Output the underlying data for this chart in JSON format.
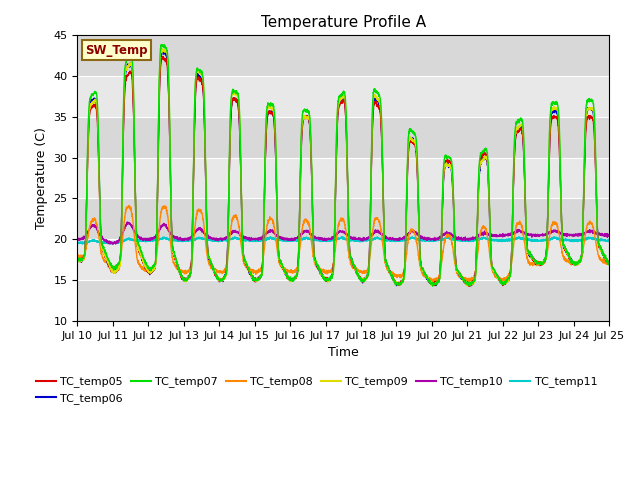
{
  "title": "Temperature Profile A",
  "xlabel": "Time",
  "ylabel": "Temperature (C)",
  "ylim": [
    10,
    45
  ],
  "background_color": "#e8e8e8",
  "sw_temp_label": "SW_Temp",
  "series": {
    "TC_temp05": {
      "color": "#dd0000",
      "lw": 1.0
    },
    "TC_temp06": {
      "color": "#0000cc",
      "lw": 1.0
    },
    "TC_temp07": {
      "color": "#00dd00",
      "lw": 1.0
    },
    "TC_temp08": {
      "color": "#ff8800",
      "lw": 1.0
    },
    "TC_temp09": {
      "color": "#dddd00",
      "lw": 1.0
    },
    "TC_temp10": {
      "color": "#aa00aa",
      "lw": 1.0
    },
    "TC_temp11": {
      "color": "#00cccc",
      "lw": 1.2
    }
  },
  "x_tick_labels": [
    "Jul 10",
    "Jul 11",
    "Jul 12",
    "Jul 13",
    "Jul 14",
    "Jul 15",
    "Jul 16",
    "Jul 17",
    "Jul 18",
    "Jul 19",
    "Jul 20",
    "Jul 21",
    "Jul 22",
    "Jul 23",
    "Jul 24",
    "Jul 25"
  ],
  "yticks": [
    10,
    15,
    20,
    25,
    30,
    35,
    40,
    45
  ],
  "peaks_07": [
    36,
    40,
    45,
    42,
    39,
    37,
    36,
    35.5,
    40.5,
    35,
    31,
    29,
    33,
    36.5,
    37
  ],
  "peaks_09": [
    35,
    39,
    44,
    42,
    38.5,
    37,
    35,
    35,
    40,
    34,
    30,
    28,
    32,
    36,
    36
  ],
  "peaks_05": [
    35,
    38,
    43,
    41,
    38,
    36,
    35,
    35,
    39,
    33.5,
    30,
    29,
    32,
    35,
    35
  ],
  "peaks_06": [
    35.5,
    39,
    44,
    41.5,
    38,
    36,
    35,
    35,
    39.5,
    34,
    30,
    28,
    32,
    35.5,
    36
  ],
  "peaks_08": [
    21,
    24,
    24,
    24,
    23,
    22.5,
    22.5,
    22,
    23,
    22,
    20,
    21,
    22,
    22,
    22
  ],
  "peaks_10": [
    21.5,
    22,
    22,
    21.5,
    21,
    21,
    21,
    21,
    21,
    21,
    21,
    20.5,
    21,
    21,
    21
  ],
  "peaks_11": [
    19.8,
    20,
    20.2,
    20.2,
    20.2,
    20.2,
    20.2,
    20.2,
    20.2,
    20.2,
    20.2,
    20.2,
    20.2,
    20.2,
    20.2
  ],
  "troughs_07": [
    17.5,
    16.5,
    16.5,
    15,
    15,
    15,
    15,
    15,
    15,
    14.5,
    14.5,
    14.5,
    14.5,
    17,
    17
  ],
  "troughs_05": [
    17.5,
    16,
    16,
    15,
    15,
    15,
    15,
    15,
    15,
    14.5,
    14.5,
    14.5,
    14.5,
    17,
    17
  ],
  "troughs_06": [
    17.5,
    16,
    16,
    15,
    15,
    15,
    15,
    15,
    15,
    14.5,
    14.5,
    14.5,
    14.5,
    17,
    17
  ],
  "troughs_09": [
    17.5,
    16,
    16,
    15,
    15,
    15,
    15,
    15,
    15,
    14.5,
    14.5,
    14.5,
    14.5,
    17,
    17
  ],
  "troughs_08": [
    18,
    16.5,
    16,
    16,
    16,
    16,
    16,
    16,
    16,
    15.5,
    15,
    15,
    15,
    17,
    17
  ],
  "troughs_10": [
    20,
    19.5,
    20,
    20,
    20,
    20,
    20,
    20,
    20,
    20,
    20,
    20,
    20.5,
    20.5,
    20.5
  ],
  "troughs_11": [
    19.5,
    19.5,
    19.8,
    19.8,
    19.8,
    19.8,
    19.8,
    19.8,
    19.8,
    19.8,
    19.8,
    19.8,
    19.8,
    19.8,
    19.8
  ]
}
